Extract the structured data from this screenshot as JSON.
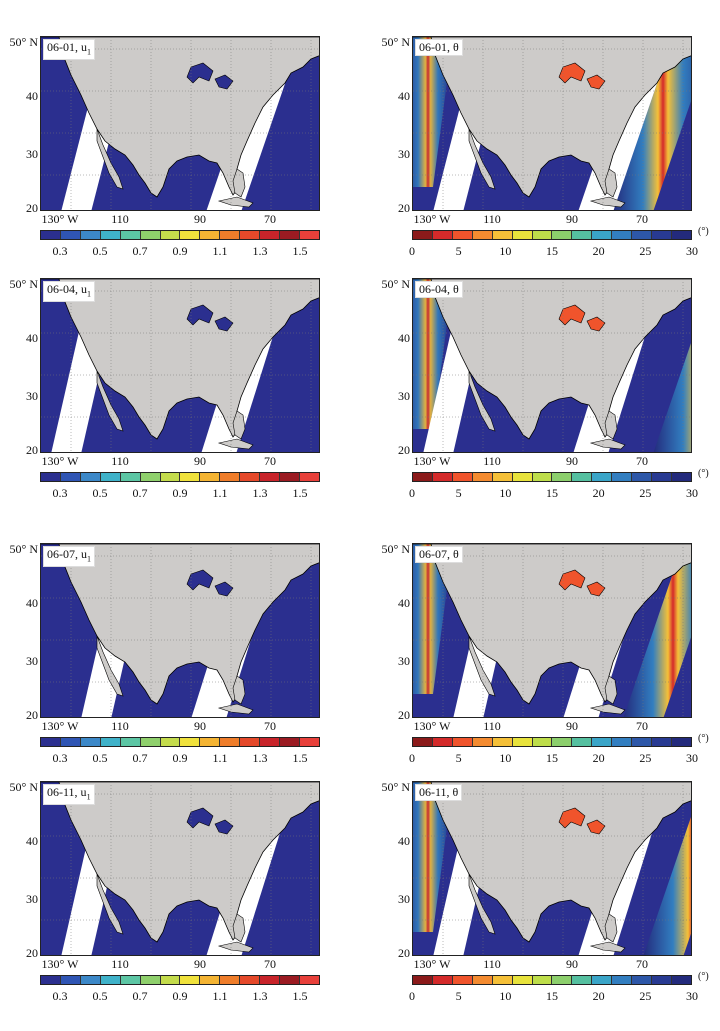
{
  "panels": [
    {
      "label": "06-01, u",
      "sub": "1",
      "variable": "u1"
    },
    {
      "label": "06-01, θ",
      "sub": "",
      "variable": "theta"
    },
    {
      "label": "06-04, u",
      "sub": "1",
      "variable": "u1"
    },
    {
      "label": "06-04, θ",
      "sub": "",
      "variable": "theta"
    },
    {
      "label": "06-07, u",
      "sub": "1",
      "variable": "u1"
    },
    {
      "label": "06-07, θ",
      "sub": "",
      "variable": "theta"
    },
    {
      "label": "06-11, u",
      "sub": "1",
      "variable": "u1"
    },
    {
      "label": "06-11, θ",
      "sub": "",
      "variable": "theta"
    }
  ],
  "lat_ticks": [
    "50° N",
    "40",
    "30",
    "20"
  ],
  "lon_ticks": [
    "130° W",
    "110",
    "90",
    "70"
  ],
  "u1_colorbar": {
    "labels": [
      "0.3",
      "0.5",
      "0.7",
      "0.9",
      "1.1",
      "1.3",
      "1.5"
    ],
    "colors": [
      "#2b2f8f",
      "#2f55b4",
      "#3c88c8",
      "#3fb2c9",
      "#5cc6a4",
      "#8fd06c",
      "#c4dc4c",
      "#f0e23c",
      "#f4b433",
      "#ef7d2a",
      "#e5492a",
      "#c8242a",
      "#9b1b22",
      "#e8403a"
    ]
  },
  "theta_colorbar": {
    "labels": [
      "0",
      "5",
      "10",
      "15",
      "20",
      "25",
      "30"
    ],
    "unit": "(°)",
    "colors": [
      "#8b1a1a",
      "#d42a2a",
      "#f0542c",
      "#f48b30",
      "#f5c038",
      "#e8e33c",
      "#bede4a",
      "#8ccf6c",
      "#55c0a0",
      "#3aa5c8",
      "#327ec0",
      "#2d57a8",
      "#283a92",
      "#232a7c"
    ]
  },
  "colors": {
    "land": "#cdcbc9",
    "ocean_low": "#2b2f8f",
    "swath_gap": "#ffffff"
  }
}
